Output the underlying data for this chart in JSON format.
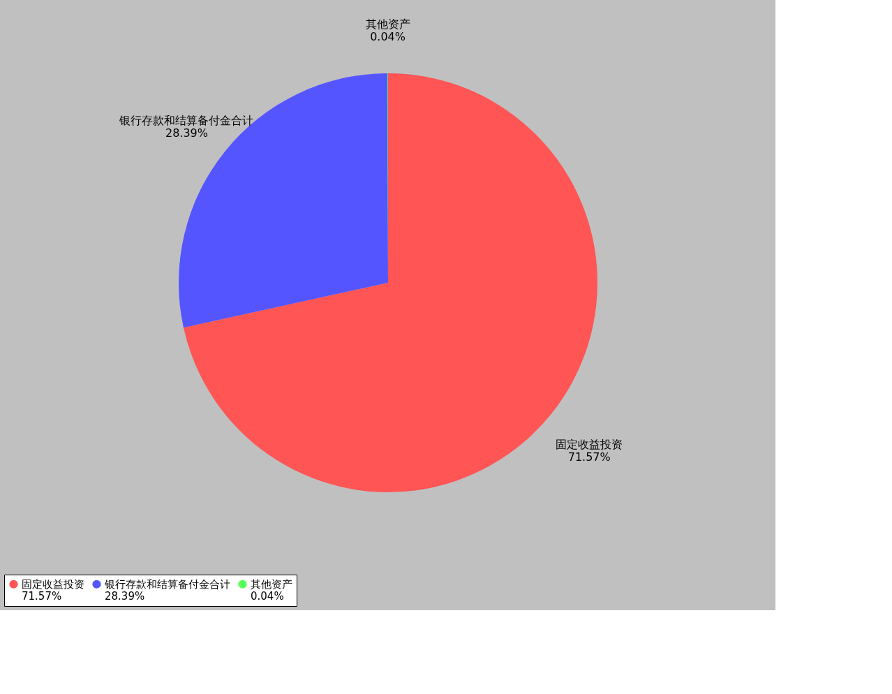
{
  "chart_data": {
    "type": "pie",
    "categories": [
      "固定收益投资",
      "银行存款和结算备付金合计",
      "其他资产"
    ],
    "values": [
      71.57,
      28.39,
      0.04
    ],
    "value_labels": [
      "71.57%",
      "28.39%",
      "0.04%"
    ],
    "colors": [
      "#ff5555",
      "#5555ff",
      "#55ff55"
    ],
    "legend": "bottom"
  }
}
